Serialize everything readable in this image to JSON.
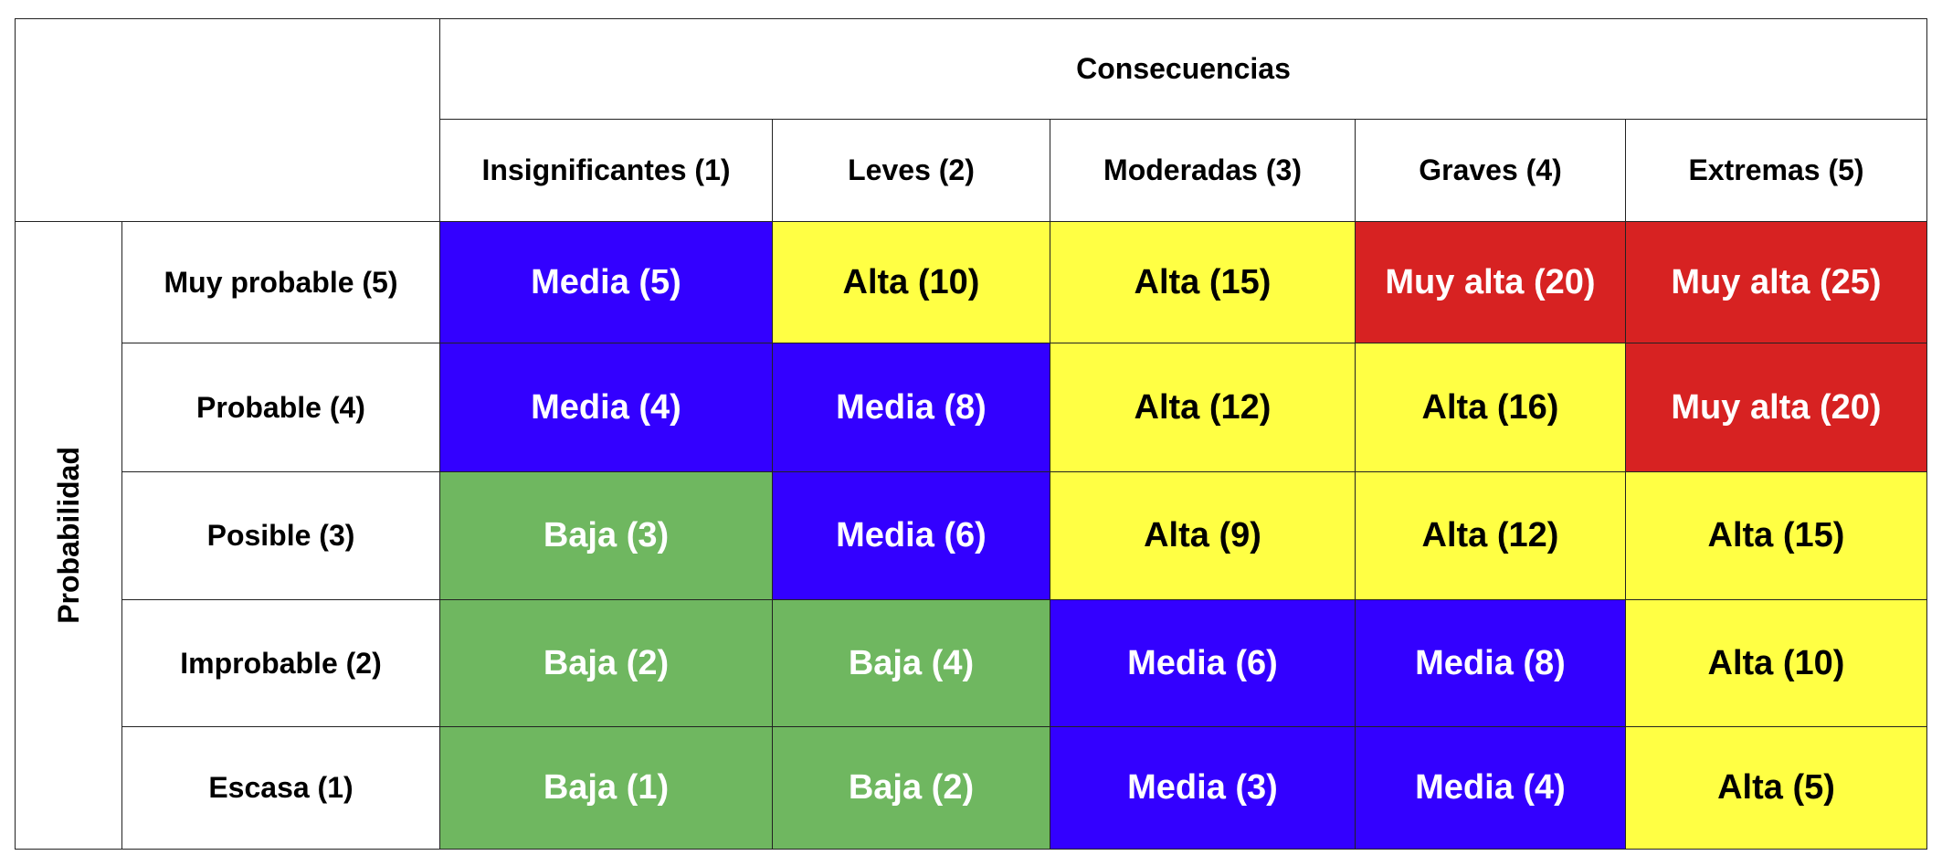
{
  "matrix": {
    "consequences_title": "Consecuencias",
    "probability_title": "Probabilidad",
    "columns": [
      "Insignificantes (1)",
      "Leves (2)",
      "Moderadas (3)",
      "Graves (4)",
      "Extremas (5)"
    ],
    "rows": [
      {
        "label": "Muy probable (5)",
        "cells": [
          {
            "text": "Media (5)",
            "level": "media"
          },
          {
            "text": "Alta (10)",
            "level": "alta"
          },
          {
            "text": "Alta (15)",
            "level": "alta"
          },
          {
            "text": "Muy alta (20)",
            "level": "muy-alta"
          },
          {
            "text": "Muy alta (25)",
            "level": "muy-alta"
          }
        ]
      },
      {
        "label": "Probable (4)",
        "cells": [
          {
            "text": "Media (4)",
            "level": "media"
          },
          {
            "text": "Media (8)",
            "level": "media"
          },
          {
            "text": "Alta (12)",
            "level": "alta"
          },
          {
            "text": "Alta (16)",
            "level": "alta"
          },
          {
            "text": "Muy alta (20)",
            "level": "muy-alta"
          }
        ]
      },
      {
        "label": "Posible (3)",
        "cells": [
          {
            "text": "Baja (3)",
            "level": "baja"
          },
          {
            "text": "Media (6)",
            "level": "media"
          },
          {
            "text": "Alta (9)",
            "level": "alta"
          },
          {
            "text": "Alta (12)",
            "level": "alta"
          },
          {
            "text": "Alta (15)",
            "level": "alta"
          }
        ]
      },
      {
        "label": "Improbable (2)",
        "cells": [
          {
            "text": "Baja (2)",
            "level": "baja"
          },
          {
            "text": "Baja (4)",
            "level": "baja"
          },
          {
            "text": "Media (6)",
            "level": "media"
          },
          {
            "text": "Media (8)",
            "level": "media"
          },
          {
            "text": "Alta (10)",
            "level": "alta"
          }
        ]
      },
      {
        "label": "Escasa (1)",
        "cells": [
          {
            "text": "Baja (1)",
            "level": "baja"
          },
          {
            "text": "Baja (2)",
            "level": "baja"
          },
          {
            "text": "Media (3)",
            "level": "media"
          },
          {
            "text": "Media (4)",
            "level": "media"
          },
          {
            "text": "Alta (5)",
            "level": "alta"
          }
        ]
      }
    ]
  },
  "colors": {
    "baja": {
      "bg": "#6fb760",
      "fg": "#ffffff"
    },
    "media": {
      "bg": "#3300ff",
      "fg": "#ffffff"
    },
    "alta": {
      "bg": "#ffff44",
      "fg": "#000000"
    },
    "muy-alta": {
      "bg": "#d72222",
      "fg": "#ffffff"
    }
  }
}
